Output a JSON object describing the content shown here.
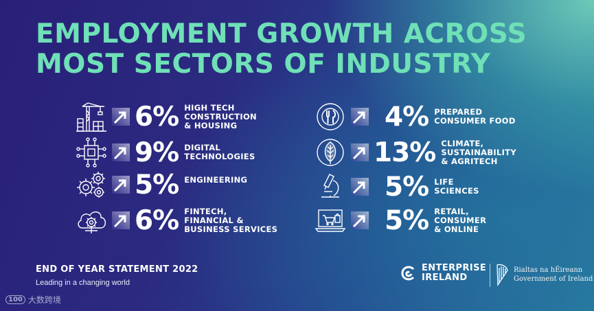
{
  "title": {
    "line1": "EMPLOYMENT GROWTH ACROSS",
    "line2": "MOST SECTORS OF INDUSTRY"
  },
  "sectors_left": [
    {
      "icon": "construction-crane-icon",
      "percent": "6%",
      "label": "HIGH TECH\nCONSTRUCTION\n& HOUSING"
    },
    {
      "icon": "microchip-icon",
      "percent": "9%",
      "label": "DIGITAL\nTECHNOLOGIES"
    },
    {
      "icon": "gears-icon",
      "percent": "5%",
      "label": "ENGINEERING"
    },
    {
      "icon": "cloud-gear-icon",
      "percent": "6%",
      "label": "FINTECH,\nFINANCIAL &\nBUSINESS SERVICES"
    }
  ],
  "sectors_right": [
    {
      "icon": "plate-cutlery-icon",
      "percent": "4%",
      "label": "PREPARED\nCONSUMER FOOD"
    },
    {
      "icon": "leaf-icon",
      "percent": "13%",
      "label": "CLIMATE,\nSUSTAINABILITY\n& AGRITECH"
    },
    {
      "icon": "microscope-icon",
      "percent": "5%",
      "label": "LIFE\nSCIENCES"
    },
    {
      "icon": "laptop-shopping-icon",
      "percent": "5%",
      "label": "RETAIL,\nCONSUMER\n& ONLINE"
    }
  ],
  "footer": {
    "title": "END OF YEAR STATEMENT 2022",
    "subtitle": "Leading in a changing world"
  },
  "enterprise_logo": {
    "line1": "ENTERPRISE",
    "line2": "IRELAND"
  },
  "government": {
    "line1": "Rialtas na hÉireann",
    "line2": "Government of Ireland"
  },
  "watermark": {
    "logo": "100",
    "text": "大数跨境"
  },
  "colors": {
    "title": "#6fe0b7",
    "text": "#ffffff",
    "background_start": "#2a1f78",
    "background_end": "#6fd2b5"
  }
}
